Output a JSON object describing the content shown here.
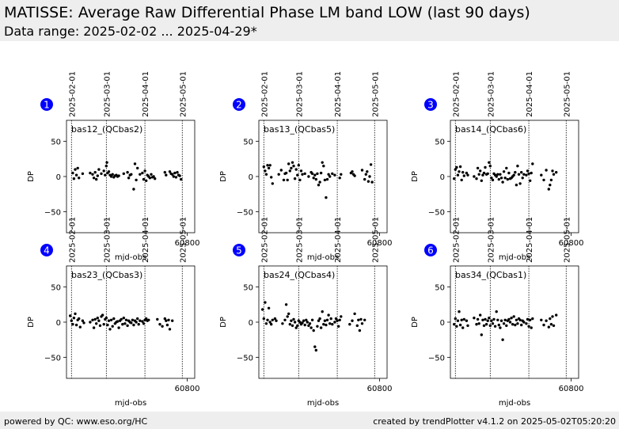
{
  "header": {
    "title": "MATISSE: Average Raw Differential Phase LM band LOW (last 90 days)",
    "subtitle": "Data range: 2025-02-02 ... 2025-04-29*"
  },
  "footer": {
    "left": "powered by QC: www.eso.org/HC",
    "right": "created by trendPlotter v4.1.2 on 2025-05-02T05:20:20"
  },
  "colors": {
    "marker": "#0000ff",
    "points": "#000000",
    "header_bg": "#eeeeee"
  },
  "chart_data": [
    {
      "type": "scatter",
      "panel_number": "1",
      "annotation": "bas12_(QCbas2)",
      "xlabel": "mjd-obs",
      "ylabel": "DP",
      "xlim": [
        60703,
        60806
      ],
      "ylim": [
        -80,
        80
      ],
      "xticks": [
        60800
      ],
      "yticks": [
        -50,
        0,
        50
      ],
      "date_lines": [
        {
          "x": 60707,
          "label": "2025-02-01"
        },
        {
          "x": 60735,
          "label": "2025-03-01"
        },
        {
          "x": 60766,
          "label": "2025-04-01"
        },
        {
          "x": 60796,
          "label": "2025-05-01"
        }
      ],
      "x": [
        60708,
        60709,
        60710,
        60711,
        60712,
        60713,
        60716,
        60722,
        60724,
        60725,
        60726,
        60727,
        60728,
        60729,
        60731,
        60733,
        60734,
        60735,
        60735.5,
        60736,
        60737,
        60738,
        60739,
        60740,
        60741,
        60742,
        60743,
        60744,
        60745,
        60749,
        60752,
        60753,
        60754,
        60755,
        60757,
        60758,
        60759,
        60760,
        60762,
        60764,
        60765,
        60766,
        60767,
        60768,
        60769,
        60770,
        60771,
        60772,
        60773,
        60774,
        60782,
        60783,
        60786,
        60787,
        60788,
        60789,
        60790,
        60791,
        60792,
        60793,
        60794,
        60795
      ],
      "y": [
        5,
        -3,
        10,
        2,
        12,
        -2,
        4,
        5,
        3,
        -2,
        6,
        -4,
        1,
        10,
        4,
        8,
        2,
        15,
        20,
        5,
        7,
        2,
        0,
        3,
        -1,
        1,
        2,
        0,
        1,
        4,
        6,
        -2,
        2,
        3,
        -18,
        18,
        -5,
        12,
        3,
        5,
        -4,
        8,
        -6,
        2,
        0,
        -2,
        3,
        -1,
        0,
        -3,
        6,
        2,
        7,
        4,
        3,
        0,
        5,
        -1,
        6,
        2,
        1,
        -4
      ]
    },
    {
      "type": "scatter",
      "panel_number": "2",
      "annotation": "bas13_(QCbas5)",
      "xlabel": "mjd-obs",
      "ylabel": "DP",
      "xlim": [
        60703,
        60806
      ],
      "ylim": [
        -80,
        80
      ],
      "xticks": [
        60800
      ],
      "yticks": [
        -50,
        0,
        50
      ],
      "date_lines": [
        {
          "x": 60707,
          "label": "2025-02-01"
        },
        {
          "x": 60735,
          "label": "2025-03-01"
        },
        {
          "x": 60766,
          "label": "2025-04-01"
        },
        {
          "x": 60796,
          "label": "2025-05-01"
        }
      ],
      "x": [
        60707,
        60708,
        60709,
        60710,
        60711,
        60712,
        60713,
        60714,
        60719,
        60721,
        60723,
        60724,
        60725,
        60726,
        60727,
        60728,
        60729,
        60730,
        60731,
        60732,
        60733,
        60734,
        60735,
        60736,
        60737,
        60738,
        60740,
        60743,
        60745,
        60746,
        60747,
        60748,
        60749,
        60750,
        60751,
        60752,
        60753,
        60754,
        60755,
        60756,
        60757,
        60758,
        60759,
        60760,
        60762,
        60764,
        60768,
        60769,
        60777,
        60778,
        60779,
        60780,
        60786,
        60788,
        60789,
        60790,
        60791,
        60792,
        60793,
        60794
      ],
      "y": [
        14,
        8,
        3,
        16,
        12,
        16,
        -1,
        -10,
        3,
        9,
        -5,
        4,
        5,
        -5,
        18,
        8,
        12,
        20,
        15,
        -3,
        10,
        2,
        16,
        -5,
        8,
        3,
        4,
        0,
        6,
        4,
        -2,
        2,
        -4,
        4,
        -12,
        -8,
        5,
        20,
        15,
        -5,
        -30,
        -4,
        3,
        0,
        4,
        2,
        -2,
        3,
        5,
        7,
        3,
        1,
        9,
        -4,
        3,
        7,
        -7,
        0,
        17,
        -8
      ]
    },
    {
      "type": "scatter",
      "panel_number": "3",
      "annotation": "bas14_(QCbas6)",
      "xlabel": "mjd-obs",
      "ylabel": "DP",
      "xlim": [
        60703,
        60806
      ],
      "ylim": [
        -80,
        80
      ],
      "xticks": [
        60800
      ],
      "yticks": [
        -50,
        0,
        50
      ],
      "date_lines": [
        {
          "x": 60707,
          "label": "2025-02-01"
        },
        {
          "x": 60735,
          "label": "2025-03-01"
        },
        {
          "x": 60766,
          "label": "2025-04-01"
        },
        {
          "x": 60796,
          "label": "2025-05-01"
        }
      ],
      "x": [
        60706,
        60707,
        60708,
        60709,
        60710,
        60711,
        60712,
        60713,
        60714,
        60716,
        60717,
        60722,
        60724,
        60725,
        60726,
        60727,
        60728,
        60729,
        60730,
        60731,
        60732,
        60733,
        60734,
        60735,
        60736,
        60737,
        60738,
        60739,
        60740,
        60741,
        60742,
        60743,
        60744,
        60745,
        60746,
        60747,
        60748,
        60749,
        60750,
        60751,
        60752,
        60753,
        60754,
        60755,
        60756,
        60757,
        60758,
        60759,
        60760,
        60761,
        60762,
        60764,
        60765,
        60766,
        60767,
        60768,
        60769,
        60776,
        60778,
        60780,
        60782,
        60783,
        60784,
        60785,
        60786,
        60788
      ],
      "y": [
        -3,
        10,
        13,
        2,
        7,
        14,
        -5,
        6,
        1,
        5,
        2,
        0,
        -3,
        12,
        3,
        8,
        -6,
        2,
        5,
        13,
        3,
        4,
        20,
        15,
        -2,
        -5,
        4,
        2,
        0,
        3,
        -4,
        3,
        -2,
        -8,
        7,
        -2,
        12,
        -4,
        5,
        -3,
        -2,
        0,
        2,
        6,
        -12,
        15,
        3,
        -10,
        6,
        -2,
        3,
        2,
        8,
        4,
        -6,
        5,
        18,
        2,
        -5,
        9,
        -18,
        -12,
        -5,
        8,
        3,
        6
      ]
    },
    {
      "type": "scatter",
      "panel_number": "4",
      "annotation": "bas23_(QCbas3)",
      "xlabel": "mjd-obs",
      "ylabel": "DP",
      "xlim": [
        60703,
        60806
      ],
      "ylim": [
        -80,
        80
      ],
      "xticks": [
        60800
      ],
      "yticks": [
        -50,
        0,
        50
      ],
      "date_lines": [
        {
          "x": 60707,
          "label": "2025-02-01"
        },
        {
          "x": 60735,
          "label": "2025-03-01"
        },
        {
          "x": 60766,
          "label": "2025-04-01"
        },
        {
          "x": 60796,
          "label": "2025-05-01"
        }
      ],
      "x": [
        60706,
        60707,
        60708,
        60709,
        60710,
        60711,
        60712,
        60713,
        60714,
        60716,
        60717,
        60722,
        60724,
        60725,
        60726,
        60727,
        60728,
        60729,
        60730,
        60731,
        60732,
        60733,
        60734,
        60735,
        60736,
        60737,
        60738,
        60739,
        60740,
        60741,
        60742,
        60743,
        60744,
        60745,
        60746,
        60747,
        60748,
        60749,
        60750,
        60751,
        60752,
        60753,
        60754,
        60755,
        60756,
        60757,
        60758,
        60759,
        60760,
        60761,
        60762,
        60764,
        60765,
        60766,
        60767,
        60768,
        60769,
        60776,
        60778,
        60780,
        60782,
        60783,
        60784,
        60785,
        60786,
        60788
      ],
      "y": [
        9,
        2,
        -3,
        6,
        12,
        -4,
        3,
        5,
        -7,
        2,
        -1,
        0,
        3,
        -8,
        4,
        -2,
        6,
        2,
        -5,
        8,
        10,
        -3,
        4,
        6,
        -4,
        2,
        -10,
        3,
        -6,
        5,
        -2,
        0,
        1,
        -8,
        2,
        4,
        -3,
        6,
        -2,
        3,
        -5,
        2,
        0,
        -1,
        3,
        -4,
        2,
        0,
        5,
        -3,
        2,
        1,
        -2,
        3,
        5,
        2,
        3,
        4,
        -3,
        -6,
        5,
        2,
        -4,
        3,
        -10,
        2
      ]
    },
    {
      "type": "scatter",
      "panel_number": "5",
      "annotation": "bas24_(QCbas4)",
      "xlabel": "mjd-obs",
      "ylabel": "DP",
      "xlim": [
        60703,
        60806
      ],
      "ylim": [
        -80,
        80
      ],
      "xticks": [
        60800
      ],
      "yticks": [
        -50,
        0,
        50
      ],
      "date_lines": [
        {
          "x": 60707,
          "label": "2025-02-01"
        },
        {
          "x": 60735,
          "label": "2025-03-01"
        },
        {
          "x": 60766,
          "label": "2025-04-01"
        },
        {
          "x": 60796,
          "label": "2025-05-01"
        }
      ],
      "x": [
        60706,
        60707,
        60708,
        60709,
        60710,
        60711,
        60712,
        60713,
        60714,
        60716,
        60717,
        60722,
        60724,
        60725,
        60726,
        60727,
        60728,
        60729,
        60730,
        60731,
        60732,
        60733,
        60734,
        60735,
        60736,
        60737,
        60738,
        60739,
        60740,
        60741,
        60742,
        60743,
        60744,
        60745,
        60746,
        60747,
        60748,
        60749,
        60750,
        60751,
        60752,
        60753,
        60754,
        60755,
        60756,
        60757,
        60758,
        60759,
        60760,
        60761,
        60762,
        60764,
        60765,
        60766,
        60767,
        60768,
        60769,
        60776,
        60778,
        60780,
        60782,
        60783,
        60784,
        60785,
        60786,
        60788
      ],
      "y": [
        18,
        5,
        28,
        -2,
        3,
        20,
        0,
        -3,
        3,
        5,
        2,
        -2,
        3,
        25,
        8,
        12,
        -3,
        2,
        -5,
        4,
        0,
        -8,
        -5,
        2,
        0,
        -3,
        -1,
        2,
        -4,
        3,
        0,
        -5,
        -2,
        -8,
        3,
        -12,
        -35,
        -40,
        -6,
        2,
        5,
        -8,
        15,
        -3,
        2,
        -4,
        3,
        10,
        -2,
        5,
        -3,
        0,
        5,
        2,
        -6,
        3,
        8,
        -3,
        2,
        12,
        -5,
        3,
        -12,
        4,
        -2,
        3
      ]
    },
    {
      "type": "scatter",
      "panel_number": "6",
      "annotation": "bas34_(QCbas1)",
      "xlabel": "mjd-obs",
      "ylabel": "DP",
      "xlim": [
        60703,
        60806
      ],
      "ylim": [
        -80,
        80
      ],
      "xticks": [
        60800
      ],
      "yticks": [
        -50,
        0,
        50
      ],
      "date_lines": [
        {
          "x": 60707,
          "label": "2025-02-01"
        },
        {
          "x": 60735,
          "label": "2025-03-01"
        },
        {
          "x": 60766,
          "label": "2025-04-01"
        },
        {
          "x": 60796,
          "label": "2025-05-01"
        }
      ],
      "x": [
        60706,
        60707,
        60708,
        60709,
        60710,
        60711,
        60712,
        60713,
        60714,
        60716,
        60717,
        60722,
        60724,
        60725,
        60726,
        60727,
        60728,
        60729,
        60730,
        60731,
        60732,
        60733,
        60734,
        60735,
        60736,
        60737,
        60738,
        60739,
        60740,
        60741,
        60742,
        60743,
        60744,
        60745,
        60746,
        60747,
        60748,
        60749,
        60750,
        60751,
        60752,
        60753,
        60754,
        60755,
        60756,
        60757,
        60758,
        60759,
        60760,
        60761,
        60762,
        60764,
        60765,
        60766,
        60767,
        60768,
        60769,
        60776,
        60778,
        60780,
        60782,
        60783,
        60784,
        60785,
        60786,
        60788
      ],
      "y": [
        -3,
        5,
        -6,
        2,
        15,
        -4,
        3,
        -8,
        4,
        2,
        -5,
        6,
        -3,
        4,
        -2,
        10,
        -18,
        3,
        -5,
        4,
        -3,
        2,
        6,
        -5,
        2,
        -2,
        4,
        -6,
        15,
        3,
        -4,
        -8,
        2,
        -25,
        -2,
        3,
        -5,
        2,
        4,
        0,
        6,
        -3,
        8,
        -4,
        3,
        -2,
        5,
        3,
        -4,
        2,
        0,
        -2,
        4,
        -6,
        3,
        -8,
        5,
        3,
        -4,
        2,
        -7,
        5,
        -3,
        8,
        -5,
        10
      ]
    }
  ]
}
